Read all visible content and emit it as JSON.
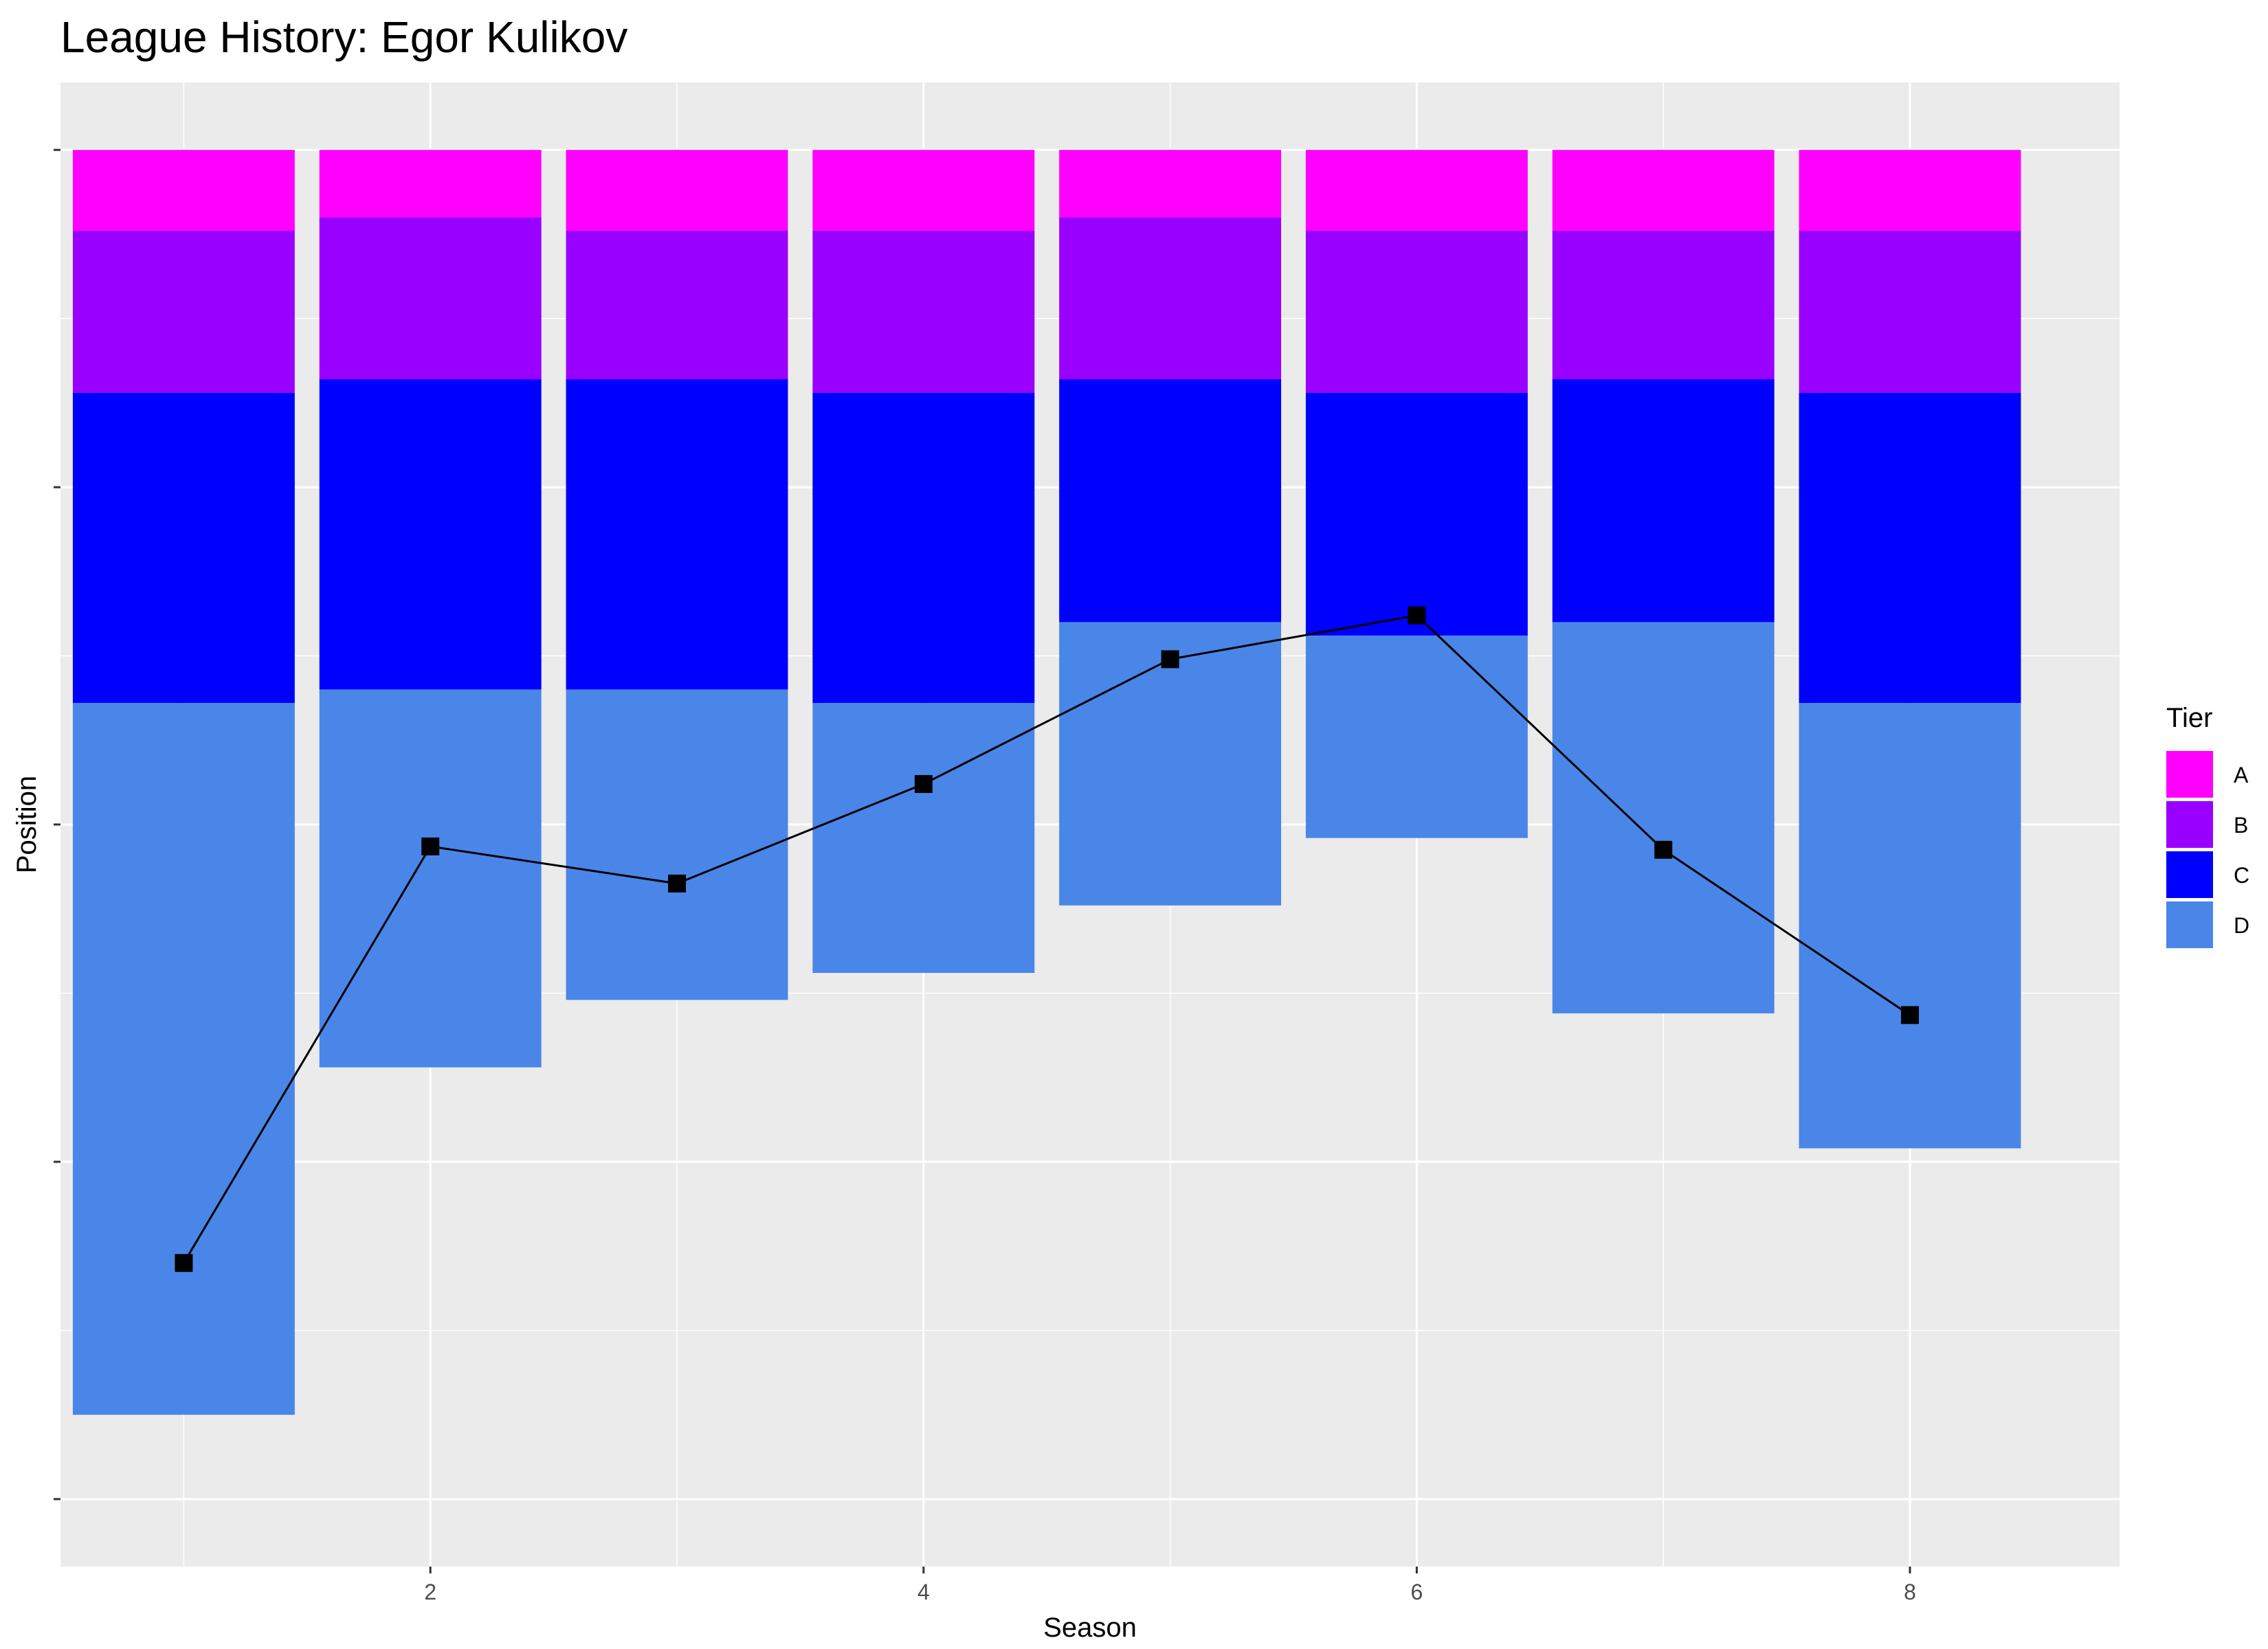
{
  "chart_data": {
    "type": "bar",
    "title": "League History: Egor Kulikov",
    "xlabel": "Season",
    "ylabel": "Position",
    "xlim": [
      0.5,
      8.85
    ],
    "ylim": [
      84,
      -4
    ],
    "x_ticks": [
      2,
      4,
      6,
      8
    ],
    "x_minor_ticks": [
      1,
      3,
      5,
      7
    ],
    "y_ticks": [
      0,
      20,
      40,
      60,
      80
    ],
    "y_minor_ticks": [
      10,
      30,
      50,
      70
    ],
    "y_tick_labels_visible": false,
    "grid": true,
    "legend": {
      "title": "Tier",
      "position": "right",
      "entries": [
        {
          "label": "A",
          "color": "#FF00FF"
        },
        {
          "label": "B",
          "color": "#9900FF"
        },
        {
          "label": "C",
          "color": "#0000FF"
        },
        {
          "label": "D",
          "color": "#4A86E8"
        }
      ]
    },
    "categories": [
      1,
      2,
      3,
      4,
      5,
      6,
      7,
      8
    ],
    "tier_order": [
      "A",
      "B",
      "C",
      "D"
    ],
    "series": [
      {
        "name": "A",
        "values": [
          4.8,
          4,
          4.8,
          4.8,
          4,
          4.8,
          4.8,
          4.8
        ]
      },
      {
        "name": "B",
        "values": [
          9.6,
          9.6,
          8.8,
          9.6,
          9.6,
          9.6,
          8.8,
          9.6
        ]
      },
      {
        "name": "C",
        "values": [
          18.4,
          18.4,
          18.4,
          18.4,
          14.4,
          14.4,
          14.4,
          18.4
        ]
      },
      {
        "name": "D",
        "values": [
          42.2,
          22.4,
          18.4,
          16,
          16.8,
          12,
          23.2,
          26.4
        ]
      }
    ],
    "position_line": {
      "marker": "square",
      "color": "#000000",
      "x": [
        1,
        2,
        3,
        4,
        5,
        6,
        7,
        8
      ],
      "y": [
        66,
        41.3,
        43.5,
        37.6,
        30.2,
        27.6,
        41.5,
        51.3
      ]
    },
    "colors": {
      "panel_background": "#EBEBEB",
      "grid_line": "#FFFFFF",
      "line": "#000000"
    }
  }
}
